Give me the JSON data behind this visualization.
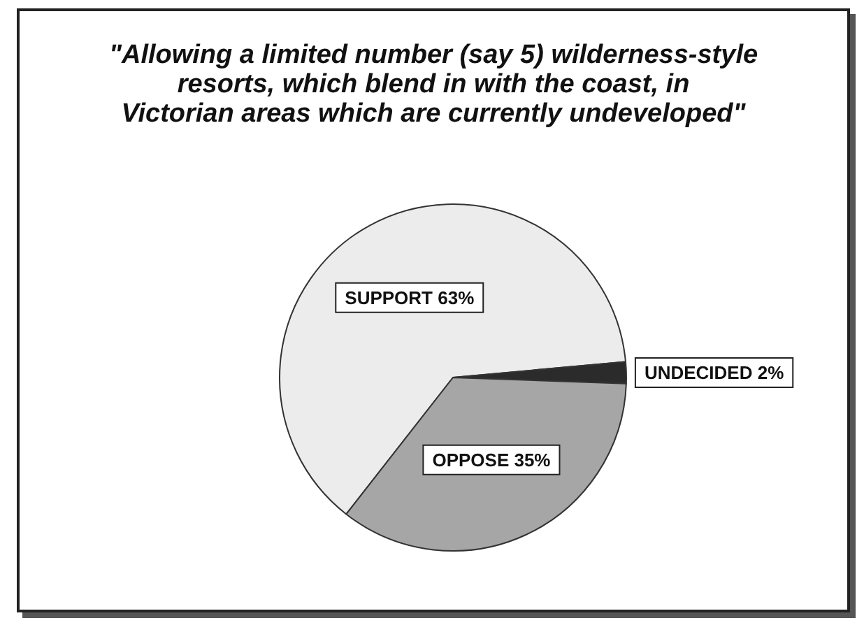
{
  "chart_data": {
    "type": "pie",
    "title": "\"Allowing a limited number (say 5) wilderness-style\nresorts, which blend in with the coast, in\nVictorian areas which are currently undeveloped\"",
    "categories": [
      "SUPPORT",
      "UNDECIDED",
      "OPPOSE"
    ],
    "values": [
      63,
      2,
      35
    ],
    "value_labels": [
      "63%",
      "2%",
      "35%"
    ],
    "colors": [
      "#ececec",
      "#2b2b2b",
      "#a6a6a6"
    ]
  }
}
